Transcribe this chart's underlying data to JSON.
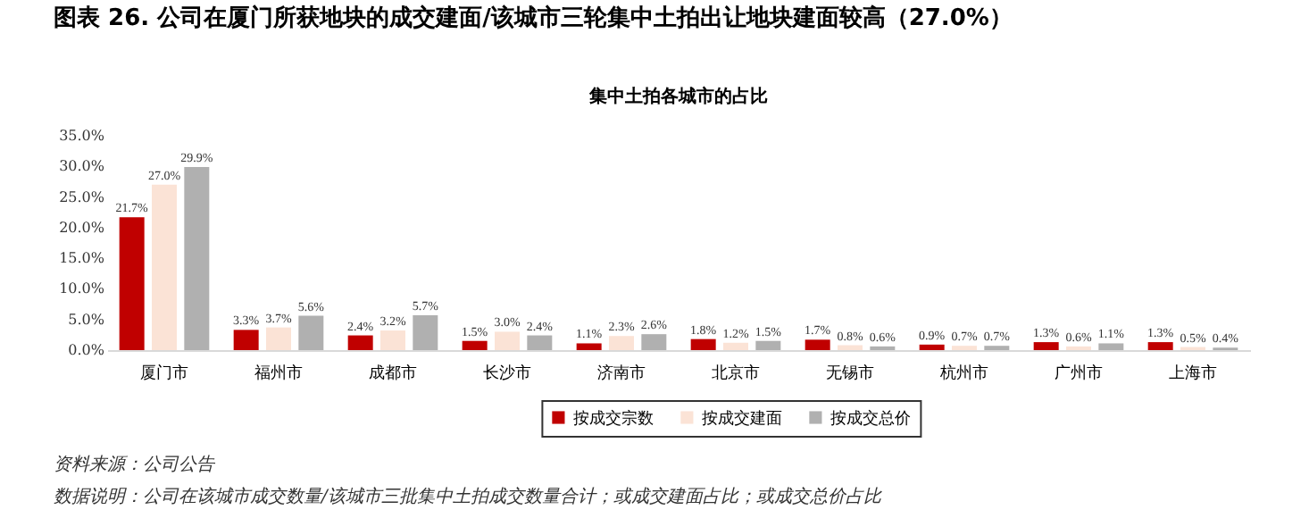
{
  "chart_data": {
    "type": "bar",
    "title": "图表 26. 公司在厦门所获地块的成交建面/该城市三轮集中土拍出让地块建面较高（27.0%）",
    "subtitle": "集中土拍各城市的占比",
    "categories": [
      "厦门市",
      "福州市",
      "成都市",
      "长沙市",
      "济南市",
      "北京市",
      "无锡市",
      "杭州市",
      "广州市",
      "上海市"
    ],
    "series": [
      {
        "name": "按成交宗数",
        "color": "#c00000",
        "values": [
          21.7,
          3.3,
          2.4,
          1.5,
          1.1,
          1.8,
          1.7,
          0.9,
          1.3,
          1.3
        ],
        "value_labels": [
          "21.7%",
          "3.3%",
          "2.4%",
          "1.5%",
          "1.1%",
          "1.8%",
          "1.7%",
          "0.9%",
          "1.3%",
          "1.3%"
        ]
      },
      {
        "name": "按成交建面",
        "color": "#fbe3d6",
        "values": [
          27.0,
          3.7,
          3.2,
          3.0,
          2.3,
          1.2,
          0.8,
          0.7,
          0.6,
          0.5
        ],
        "value_labels": [
          "27.0%",
          "3.7%",
          "3.2%",
          "3.0%",
          "2.3%",
          "1.2%",
          "0.8%",
          "0.7%",
          "0.6%",
          "0.5%"
        ]
      },
      {
        "name": "按成交总价",
        "color": "#b0b0b0",
        "values": [
          29.9,
          5.6,
          5.7,
          2.4,
          2.6,
          1.5,
          0.6,
          0.7,
          1.1,
          0.4
        ],
        "value_labels": [
          "29.9%",
          "5.6%",
          "5.7%",
          "2.4%",
          "2.6%",
          "1.5%",
          "0.6%",
          "0.7%",
          "1.1%",
          "0.4%"
        ]
      }
    ],
    "ylim": [
      0,
      35
    ],
    "yticks": [
      {
        "value": 0,
        "label": "0.0%"
      },
      {
        "value": 5,
        "label": "5.0%"
      },
      {
        "value": 10,
        "label": "10.0%"
      },
      {
        "value": 15,
        "label": "15.0%"
      },
      {
        "value": 20,
        "label": "20.0%"
      },
      {
        "value": 25,
        "label": "25.0%"
      },
      {
        "value": 30,
        "label": "30.0%"
      },
      {
        "value": 35,
        "label": "35.0%"
      }
    ],
    "grid": false,
    "legend": "bottom",
    "annotations": [
      "资料来源：公司公告",
      "数据说明：公司在该城市成交数量/该城市三批集中土拍成交数量合计；或成交建面占比；或成交总价占比"
    ]
  }
}
